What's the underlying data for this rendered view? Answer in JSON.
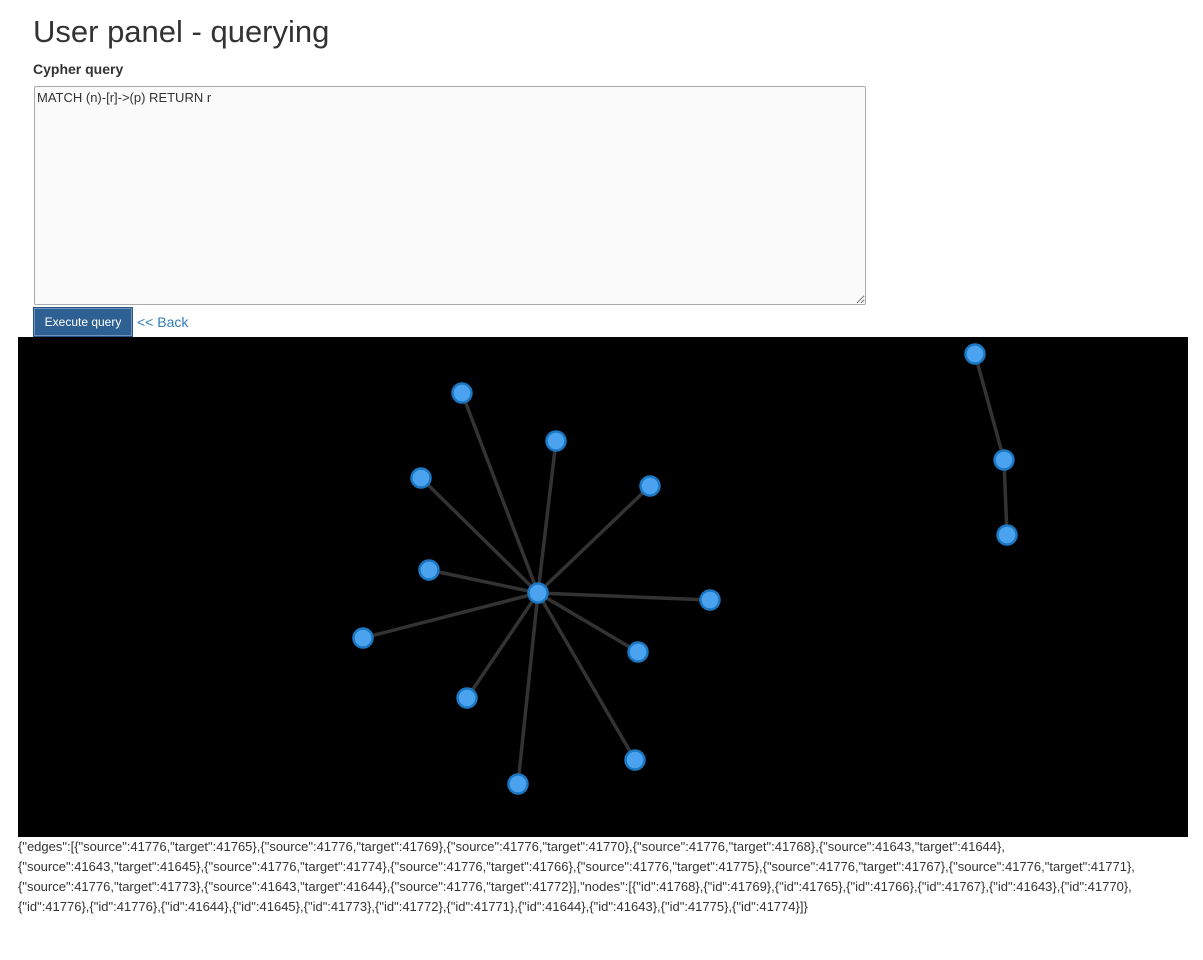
{
  "page": {
    "title": "User panel - querying"
  },
  "query": {
    "label": "Cypher query",
    "value": "MATCH (n)-[r]->(p) RETURN r"
  },
  "actions": {
    "execute_label": "Execute query",
    "back_label": "<< Back"
  },
  "graph": {
    "edges": [
      {
        "source": 41776,
        "target": 41765
      },
      {
        "source": 41776,
        "target": 41769
      },
      {
        "source": 41776,
        "target": 41770
      },
      {
        "source": 41776,
        "target": 41768
      },
      {
        "source": 41643,
        "target": 41644
      },
      {
        "source": 41643,
        "target": 41645
      },
      {
        "source": 41776,
        "target": 41774
      },
      {
        "source": 41776,
        "target": 41766
      },
      {
        "source": 41776,
        "target": 41775
      },
      {
        "source": 41776,
        "target": 41767
      },
      {
        "source": 41776,
        "target": 41771
      },
      {
        "source": 41776,
        "target": 41773
      },
      {
        "source": 41643,
        "target": 41644
      },
      {
        "source": 41776,
        "target": 41772
      }
    ],
    "node_ids": [
      41768,
      41769,
      41765,
      41766,
      41767,
      41643,
      41770,
      41776,
      41644,
      41645,
      41773,
      41772,
      41771,
      41775,
      41774
    ],
    "node_fill": "#4ba3ef",
    "node_stroke": "#1c77c3",
    "edge_color": "#333333",
    "background": "#000000"
  },
  "result": {
    "text": "{\"edges\":[{\"source\":41776,\"target\":41765},{\"source\":41776,\"target\":41769},{\"source\":41776,\"target\":41770},{\"source\":41776,\"target\":41768},{\"source\":41643,\"target\":41644},{\"source\":41643,\"target\":41645},{\"source\":41776,\"target\":41774},{\"source\":41776,\"target\":41766},{\"source\":41776,\"target\":41775},{\"source\":41776,\"target\":41767},{\"source\":41776,\"target\":41771},{\"source\":41776,\"target\":41773},{\"source\":41643,\"target\":41644},{\"source\":41776,\"target\":41772}],\"nodes\":[{\"id\":41768},{\"id\":41769},{\"id\":41765},{\"id\":41766},{\"id\":41767},{\"id\":41643},{\"id\":41770},{\"id\":41776},{\"id\":41776},{\"id\":41644},{\"id\":41645},{\"id\":41773},{\"id\":41772},{\"id\":41771},{\"id\":41644},{\"id\":41643},{\"id\":41775},{\"id\":41774}]}"
  }
}
